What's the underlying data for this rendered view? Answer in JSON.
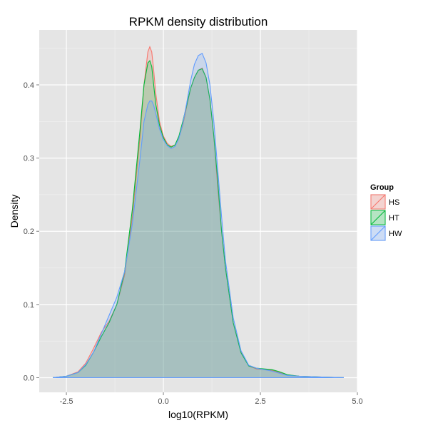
{
  "chart_data": {
    "type": "area",
    "title": "RPKM density distribution",
    "xlabel": "log10(RPKM)",
    "ylabel": "Density",
    "xlim": [
      -3.2,
      5.0
    ],
    "ylim": [
      -0.02,
      0.475
    ],
    "x_ticks": [
      -2.5,
      0.0,
      2.5,
      5.0
    ],
    "x_tick_labels": [
      "-2.5",
      "0.0",
      "2.5",
      "5.0"
    ],
    "y_ticks": [
      0.0,
      0.1,
      0.2,
      0.3,
      0.4
    ],
    "y_tick_labels": [
      "0.0",
      "0.1",
      "0.2",
      "0.3",
      "0.4"
    ],
    "grid": true,
    "legend": {
      "title": "Group",
      "position": "right"
    },
    "series": [
      {
        "name": "HS",
        "color": "#F8766D",
        "x": [
          -2.85,
          -2.5,
          -2.2,
          -2.0,
          -1.8,
          -1.6,
          -1.4,
          -1.2,
          -1.0,
          -0.8,
          -0.6,
          -0.5,
          -0.4,
          -0.35,
          -0.3,
          -0.25,
          -0.2,
          -0.1,
          0.0,
          0.1,
          0.2,
          0.3,
          0.4,
          0.5,
          0.6,
          0.7,
          0.8,
          0.9,
          1.0,
          1.1,
          1.2,
          1.3,
          1.4,
          1.5,
          1.6,
          1.8,
          2.0,
          2.2,
          2.4,
          2.6,
          2.8,
          3.0,
          3.2,
          3.5,
          4.0,
          4.65
        ],
        "y": [
          0.0,
          0.002,
          0.008,
          0.02,
          0.04,
          0.062,
          0.077,
          0.1,
          0.14,
          0.22,
          0.33,
          0.4,
          0.445,
          0.452,
          0.445,
          0.42,
          0.39,
          0.35,
          0.33,
          0.32,
          0.316,
          0.318,
          0.328,
          0.345,
          0.37,
          0.395,
          0.41,
          0.42,
          0.423,
          0.41,
          0.38,
          0.33,
          0.26,
          0.2,
          0.15,
          0.075,
          0.035,
          0.016,
          0.012,
          0.011,
          0.01,
          0.007,
          0.004,
          0.002,
          0.001,
          0.0
        ]
      },
      {
        "name": "HT",
        "color": "#00BA38",
        "x": [
          -2.85,
          -2.5,
          -2.2,
          -2.0,
          -1.8,
          -1.6,
          -1.4,
          -1.2,
          -1.0,
          -0.8,
          -0.6,
          -0.5,
          -0.4,
          -0.35,
          -0.3,
          -0.25,
          -0.2,
          -0.1,
          0.0,
          0.1,
          0.2,
          0.3,
          0.4,
          0.5,
          0.6,
          0.7,
          0.8,
          0.9,
          1.0,
          1.1,
          1.2,
          1.3,
          1.4,
          1.5,
          1.6,
          1.8,
          2.0,
          2.2,
          2.4,
          2.6,
          2.8,
          3.0,
          3.2,
          3.5,
          4.0,
          4.65
        ],
        "y": [
          0.0,
          0.002,
          0.007,
          0.017,
          0.035,
          0.056,
          0.075,
          0.1,
          0.145,
          0.23,
          0.34,
          0.4,
          0.43,
          0.433,
          0.425,
          0.4,
          0.375,
          0.345,
          0.328,
          0.318,
          0.315,
          0.318,
          0.33,
          0.35,
          0.372,
          0.395,
          0.41,
          0.42,
          0.422,
          0.41,
          0.38,
          0.33,
          0.27,
          0.2,
          0.15,
          0.075,
          0.034,
          0.016,
          0.013,
          0.012,
          0.011,
          0.008,
          0.004,
          0.002,
          0.001,
          0.0
        ]
      },
      {
        "name": "HW",
        "color": "#619CFF",
        "x": [
          -2.85,
          -2.5,
          -2.2,
          -2.0,
          -1.8,
          -1.6,
          -1.4,
          -1.2,
          -1.0,
          -0.8,
          -0.6,
          -0.5,
          -0.4,
          -0.35,
          -0.3,
          -0.25,
          -0.2,
          -0.1,
          0.0,
          0.1,
          0.2,
          0.3,
          0.4,
          0.5,
          0.6,
          0.7,
          0.8,
          0.9,
          1.0,
          1.1,
          1.2,
          1.3,
          1.4,
          1.5,
          1.6,
          1.8,
          2.0,
          2.2,
          2.4,
          2.6,
          2.8,
          3.0,
          3.2,
          3.5,
          4.0,
          4.65
        ],
        "y": [
          0.0,
          0.002,
          0.007,
          0.018,
          0.035,
          0.06,
          0.085,
          0.11,
          0.145,
          0.21,
          0.3,
          0.35,
          0.373,
          0.378,
          0.378,
          0.372,
          0.362,
          0.34,
          0.325,
          0.317,
          0.313,
          0.316,
          0.327,
          0.347,
          0.375,
          0.405,
          0.428,
          0.44,
          0.443,
          0.43,
          0.4,
          0.35,
          0.285,
          0.22,
          0.16,
          0.082,
          0.037,
          0.017,
          0.013,
          0.011,
          0.009,
          0.006,
          0.003,
          0.002,
          0.001,
          0.0
        ]
      }
    ]
  }
}
